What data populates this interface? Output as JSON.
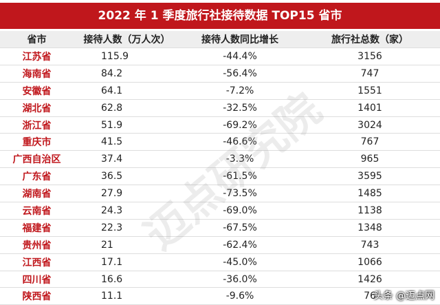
{
  "title": "2022 年 1 季度旅行社接待数据 TOP15 省市",
  "table": {
    "header": [
      "省市",
      "接待人数（万人次）",
      "接待人数同比增长",
      "旅行社总数（家）"
    ],
    "rows": [
      [
        "江苏省",
        "115.9",
        "-44.4%",
        "3156"
      ],
      [
        "海南省",
        "84.2",
        "-56.4%",
        "747"
      ],
      [
        "安徽省",
        "64.1",
        "-7.2%",
        "1551"
      ],
      [
        "湖北省",
        "62.8",
        "-32.5%",
        "1401"
      ],
      [
        "浙江省",
        "51.9",
        "-69.2%",
        "3024"
      ],
      [
        "重庆市",
        "41.5",
        "-46.6%",
        "767"
      ],
      [
        "广西自治区",
        "37.4",
        "-3.3%",
        "965"
      ],
      [
        "广东省",
        "36.5",
        "-61.5%",
        "3595"
      ],
      [
        "湖南省",
        "27.9",
        "-73.5%",
        "1485"
      ],
      [
        "云南省",
        "24.3",
        "-69.0%",
        "1138"
      ],
      [
        "福建省",
        "22.3",
        "-67.5%",
        "1348"
      ],
      [
        "贵州省",
        "21",
        "-62.4%",
        "743"
      ],
      [
        "江西省",
        "17.1",
        "-45.0%",
        "1066"
      ],
      [
        "四川省",
        "16.6",
        "-36.0%",
        "1426"
      ],
      [
        "陕西省",
        "11.1",
        "-9.6%",
        "76"
      ]
    ]
  },
  "watermark": "迈点研究院",
  "credit": "头条 @迈点网"
}
